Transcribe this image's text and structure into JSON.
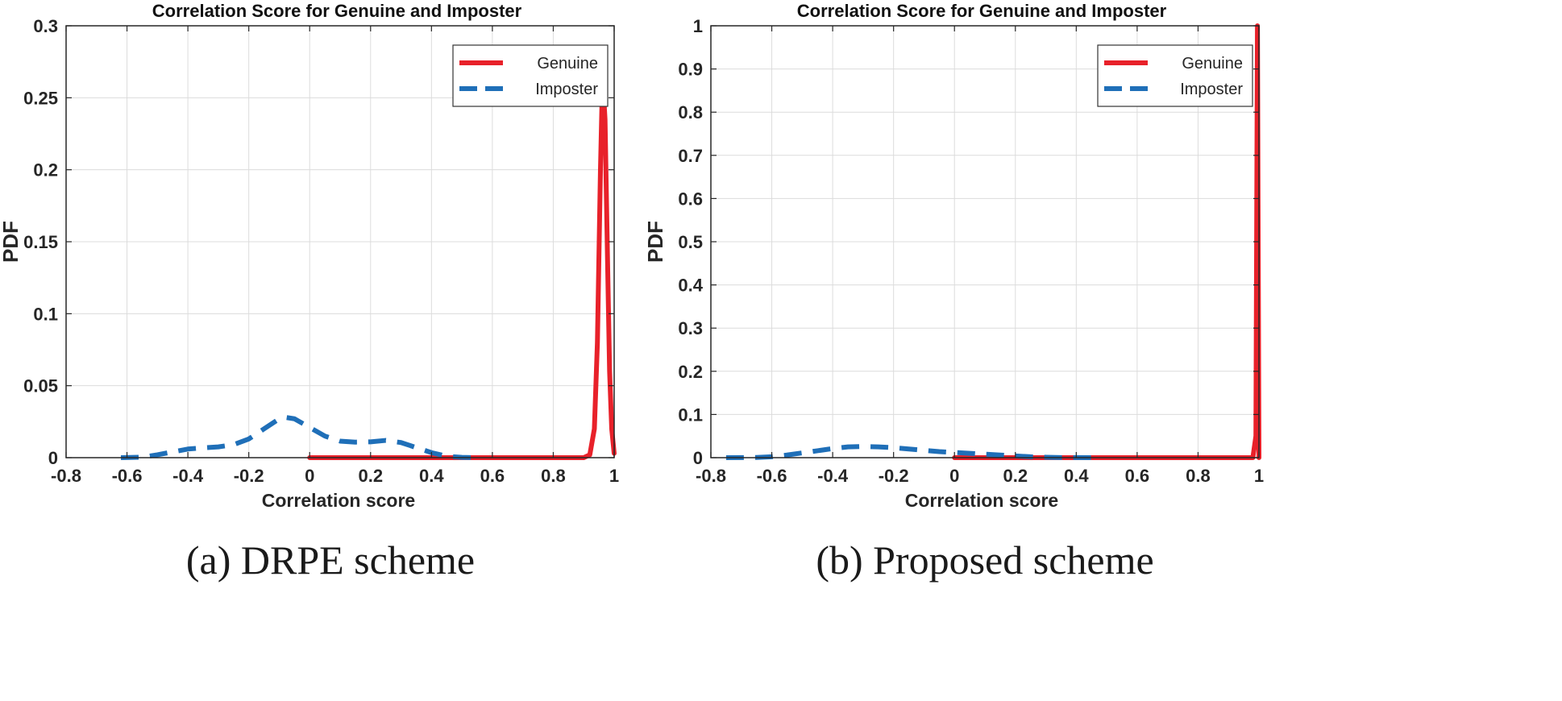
{
  "colors": {
    "genuine": "#e8212a",
    "imposter": "#1f6fb8",
    "grid": "#dcdcdc",
    "axis": "#262626"
  },
  "chart_data": [
    {
      "type": "line",
      "title": "Correlation Score for Genuine and Imposter",
      "xlabel": "Correlation score",
      "ylabel": "PDF",
      "caption": "(a) DRPE scheme",
      "xlim": [
        -0.8,
        1
      ],
      "ylim": [
        0,
        0.3
      ],
      "xticks": [
        -0.8,
        -0.6,
        -0.4,
        -0.2,
        0,
        0.2,
        0.4,
        0.6,
        0.8,
        1
      ],
      "xtick_labels": [
        "-0.8",
        "-0.6",
        "-0.4",
        "-0.2",
        "0",
        "0.2",
        "0.4",
        "0.6",
        "0.8",
        "1"
      ],
      "yticks": [
        0,
        0.05,
        0.1,
        0.15,
        0.2,
        0.25,
        0.3
      ],
      "ytick_labels": [
        "0",
        "0.05",
        "0.1",
        "0.15",
        "0.2",
        "0.25",
        "0.3"
      ],
      "grid": true,
      "legend_position": "top-right",
      "series": [
        {
          "name": "Genuine",
          "style": "solid",
          "color": "#e8212a",
          "x": [
            0,
            0.2,
            0.4,
            0.6,
            0.8,
            0.9,
            0.92,
            0.935,
            0.945,
            0.955,
            0.962,
            0.97,
            0.978,
            0.985,
            0.992,
            1.0
          ],
          "y": [
            0,
            0,
            0,
            0,
            0,
            0,
            0.002,
            0.02,
            0.08,
            0.2,
            0.265,
            0.235,
            0.14,
            0.06,
            0.02,
            0.003
          ]
        },
        {
          "name": "Imposter",
          "style": "dashed",
          "color": "#1f6fb8",
          "x": [
            -0.62,
            -0.55,
            -0.5,
            -0.45,
            -0.4,
            -0.35,
            -0.3,
            -0.25,
            -0.2,
            -0.15,
            -0.1,
            -0.08,
            -0.05,
            0,
            0.05,
            0.1,
            0.15,
            0.2,
            0.25,
            0.3,
            0.35,
            0.4,
            0.45,
            0.5,
            0.55
          ],
          "y": [
            0,
            0.0003,
            0.002,
            0.004,
            0.006,
            0.0068,
            0.0075,
            0.009,
            0.013,
            0.02,
            0.027,
            0.028,
            0.027,
            0.021,
            0.015,
            0.0115,
            0.0108,
            0.011,
            0.012,
            0.0105,
            0.007,
            0.0035,
            0.001,
            0.0002,
            0
          ]
        }
      ]
    },
    {
      "type": "line",
      "title": "Correlation Score for Genuine and Imposter",
      "xlabel": "Correlation score",
      "ylabel": "PDF",
      "caption": "(b) Proposed  scheme",
      "xlim": [
        -0.8,
        1
      ],
      "ylim": [
        0,
        1
      ],
      "xticks": [
        -0.8,
        -0.6,
        -0.4,
        -0.2,
        0,
        0.2,
        0.4,
        0.6,
        0.8,
        1
      ],
      "xtick_labels": [
        "-0.8",
        "-0.6",
        "-0.4",
        "-0.2",
        "0",
        "0.2",
        "0.4",
        "0.6",
        "0.8",
        "1"
      ],
      "yticks": [
        0,
        0.1,
        0.2,
        0.3,
        0.4,
        0.5,
        0.6,
        0.7,
        0.8,
        0.9,
        1
      ],
      "ytick_labels": [
        "0",
        "0.1",
        "0.2",
        "0.3",
        "0.4",
        "0.5",
        "0.6",
        "0.7",
        "0.8",
        "0.9",
        "1"
      ],
      "grid": true,
      "legend_position": "top-right",
      "series": [
        {
          "name": "Genuine",
          "style": "solid",
          "color": "#e8212a",
          "x": [
            0,
            0.2,
            0.4,
            0.6,
            0.8,
            0.95,
            0.98,
            0.99,
            0.995,
            1.0
          ],
          "y": [
            0,
            0,
            0,
            0,
            0,
            0,
            0,
            0.05,
            1.0,
            0
          ]
        },
        {
          "name": "Imposter",
          "style": "dashed",
          "color": "#1f6fb8",
          "x": [
            -0.75,
            -0.65,
            -0.6,
            -0.55,
            -0.5,
            -0.45,
            -0.4,
            -0.35,
            -0.3,
            -0.25,
            -0.2,
            -0.15,
            -0.1,
            -0.05,
            0,
            0.05,
            0.1,
            0.15,
            0.2,
            0.25,
            0.3,
            0.35,
            0.45
          ],
          "y": [
            0,
            0.0005,
            0.002,
            0.006,
            0.011,
            0.016,
            0.021,
            0.025,
            0.026,
            0.025,
            0.023,
            0.02,
            0.017,
            0.014,
            0.012,
            0.01,
            0.008,
            0.006,
            0.004,
            0.002,
            0.001,
            0.0003,
            0
          ]
        }
      ]
    }
  ]
}
